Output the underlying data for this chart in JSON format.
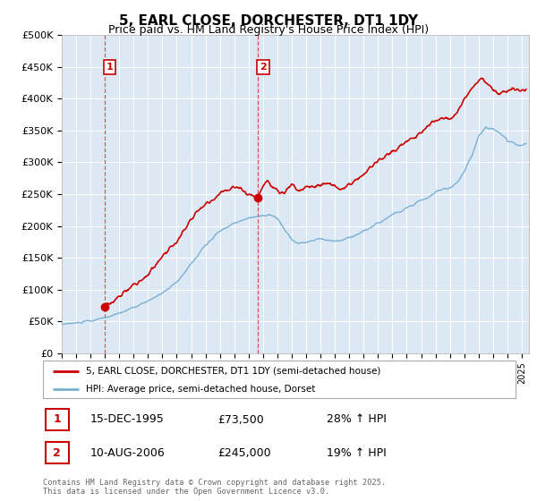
{
  "title": "5, EARL CLOSE, DORCHESTER, DT1 1DY",
  "subtitle": "Price paid vs. HM Land Registry's House Price Index (HPI)",
  "ylabel_ticks": [
    0,
    50000,
    100000,
    150000,
    200000,
    250000,
    300000,
    350000,
    400000,
    450000,
    500000
  ],
  "ylabel_labels": [
    "£0",
    "£50K",
    "£100K",
    "£150K",
    "£200K",
    "£250K",
    "£300K",
    "£350K",
    "£400K",
    "£450K",
    "£500K"
  ],
  "ylim": [
    0,
    500000
  ],
  "xlim_start": 1993.0,
  "xlim_end": 2025.5,
  "purchase1_x": 1995.958,
  "purchase1_y": 73500,
  "purchase2_x": 2006.608,
  "purchase2_y": 245000,
  "purchase1_label": "1",
  "purchase2_label": "2",
  "line_color_red": "#cc0000",
  "line_color_blue": "#7aafd4",
  "marker_color_red": "#cc0000",
  "annotation_box_color": "#cc0000",
  "legend_label_red": "5, EARL CLOSE, DORCHESTER, DT1 1DY (semi-detached house)",
  "legend_label_blue": "HPI: Average price, semi-detached house, Dorset",
  "table_row1": [
    "1",
    "15-DEC-1995",
    "£73,500",
    "28% ↑ HPI"
  ],
  "table_row2": [
    "2",
    "10-AUG-2006",
    "£245,000",
    "19% ↑ HPI"
  ],
  "copyright_text": "Contains HM Land Registry data © Crown copyright and database right 2025.\nThis data is licensed under the Open Government Licence v3.0.",
  "bg_color": "#dce9f5",
  "grid_color": "#ffffff",
  "chart_bg": "#dce9f5"
}
